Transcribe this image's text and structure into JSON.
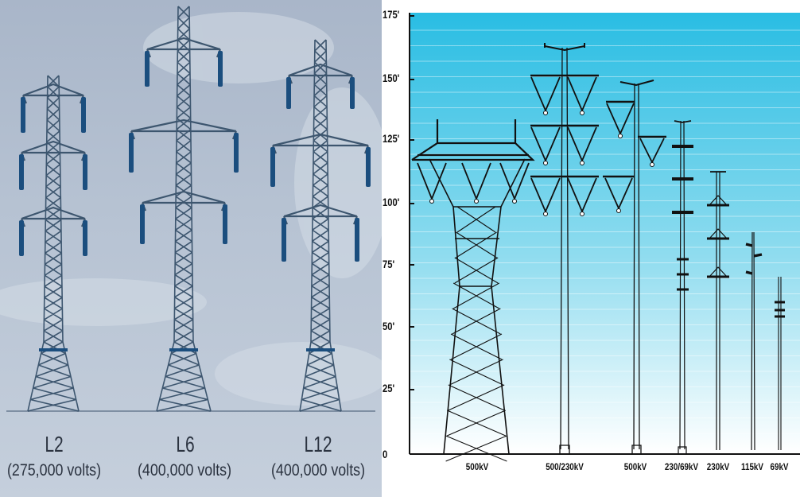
{
  "left_panel": {
    "towers": [
      {
        "name": "L2",
        "voltage": "(275,000 volts)"
      },
      {
        "name": "L6",
        "voltage": "(400,000 volts)"
      },
      {
        "name": "L12",
        "voltage": "(400,000 volts)"
      }
    ],
    "colors": {
      "background": "#b3bfcf",
      "steel": "#3d566f",
      "insulator": "#1b4e7e"
    }
  },
  "right_panel": {
    "y_ticks": [
      "175'",
      "150'",
      "125'",
      "100'",
      "75'",
      "50'",
      "25'",
      "0"
    ],
    "structures": [
      "500kV",
      "500/230kV",
      "500kV",
      "230/69kV",
      "230kV",
      "115kV",
      "69kV"
    ],
    "colors": {
      "sky_top": "#29bde3",
      "sky_bottom": "#ffffff",
      "line": "#111111"
    }
  }
}
